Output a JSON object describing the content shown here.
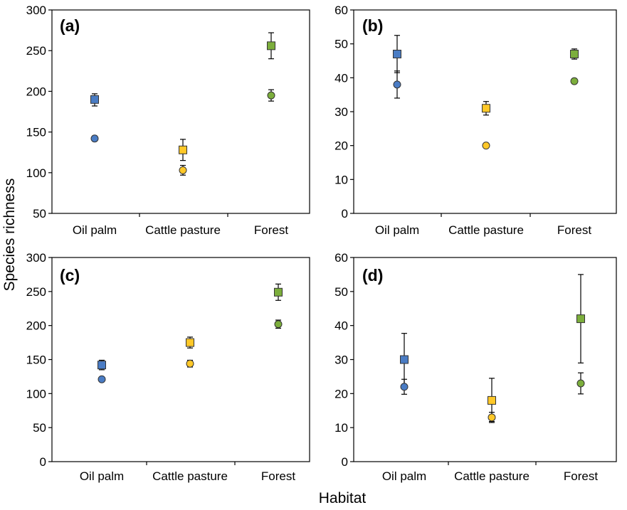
{
  "figure": {
    "ylabel": "Species richness",
    "xlabel": "Habitat"
  },
  "colors": {
    "oil_palm": "#4a7cc4",
    "cattle_pasture": "#ffc828",
    "forest": "#7cae3c",
    "border": "#000000"
  },
  "chart_data": [
    {
      "type": "scatter",
      "panel": "(a)",
      "categories": [
        "Oil palm",
        "Cattle pasture",
        "Forest"
      ],
      "ylim": [
        50,
        300
      ],
      "yticks": [
        "50",
        "100",
        "150",
        "200",
        "250",
        "300"
      ],
      "series": [
        {
          "marker": "square",
          "values": [
            190,
            128,
            256
          ],
          "err_low": [
            182,
            115,
            240
          ],
          "err_high": [
            197,
            141,
            272
          ]
        },
        {
          "marker": "circle",
          "values": [
            142,
            103,
            195
          ],
          "err_low": [
            139,
            97,
            188
          ],
          "err_high": [
            145,
            109,
            202
          ]
        }
      ]
    },
    {
      "type": "scatter",
      "panel": "(b)",
      "categories": [
        "Oil palm",
        "Cattle pasture",
        "Forest"
      ],
      "ylim": [
        0,
        60
      ],
      "yticks": [
        "0",
        "10",
        "20",
        "30",
        "40",
        "50",
        "60"
      ],
      "series": [
        {
          "marker": "square",
          "values": [
            47,
            31,
            47
          ],
          "err_low": [
            41.5,
            29,
            45.5
          ],
          "err_high": [
            52.5,
            33,
            48.5
          ]
        },
        {
          "marker": "circle",
          "values": [
            38,
            20,
            39
          ],
          "err_low": [
            34,
            19.5,
            38.3
          ],
          "err_high": [
            42,
            20.5,
            39.7
          ]
        }
      ]
    },
    {
      "type": "scatter",
      "panel": "(c)",
      "categories": [
        "Oil palm",
        "Cattle pasture",
        "Forest"
      ],
      "ylim": [
        0,
        300
      ],
      "yticks": [
        "0",
        "50",
        "100",
        "150",
        "200",
        "250",
        "300"
      ],
      "series": [
        {
          "marker": "square",
          "values": [
            142,
            175,
            249
          ],
          "err_low": [
            135,
            167,
            237
          ],
          "err_high": [
            149,
            183,
            261
          ]
        },
        {
          "marker": "circle",
          "values": [
            121,
            144,
            202
          ],
          "err_low": [
            118,
            139,
            196
          ],
          "err_high": [
            124,
            149,
            208
          ]
        }
      ]
    },
    {
      "type": "scatter",
      "panel": "(d)",
      "categories": [
        "Oil palm",
        "Cattle pasture",
        "Forest"
      ],
      "ylim": [
        0,
        60
      ],
      "yticks": [
        "0",
        "10",
        "20",
        "30",
        "40",
        "50",
        "60"
      ],
      "series": [
        {
          "marker": "square",
          "values": [
            30,
            18,
            42
          ],
          "err_low": [
            22.5,
            11.8,
            29
          ],
          "err_high": [
            37.7,
            24.5,
            55
          ]
        },
        {
          "marker": "circle",
          "values": [
            22,
            13,
            23
          ],
          "err_low": [
            19.8,
            11.5,
            19.9
          ],
          "err_high": [
            24.2,
            14.5,
            26.1
          ]
        }
      ]
    }
  ]
}
